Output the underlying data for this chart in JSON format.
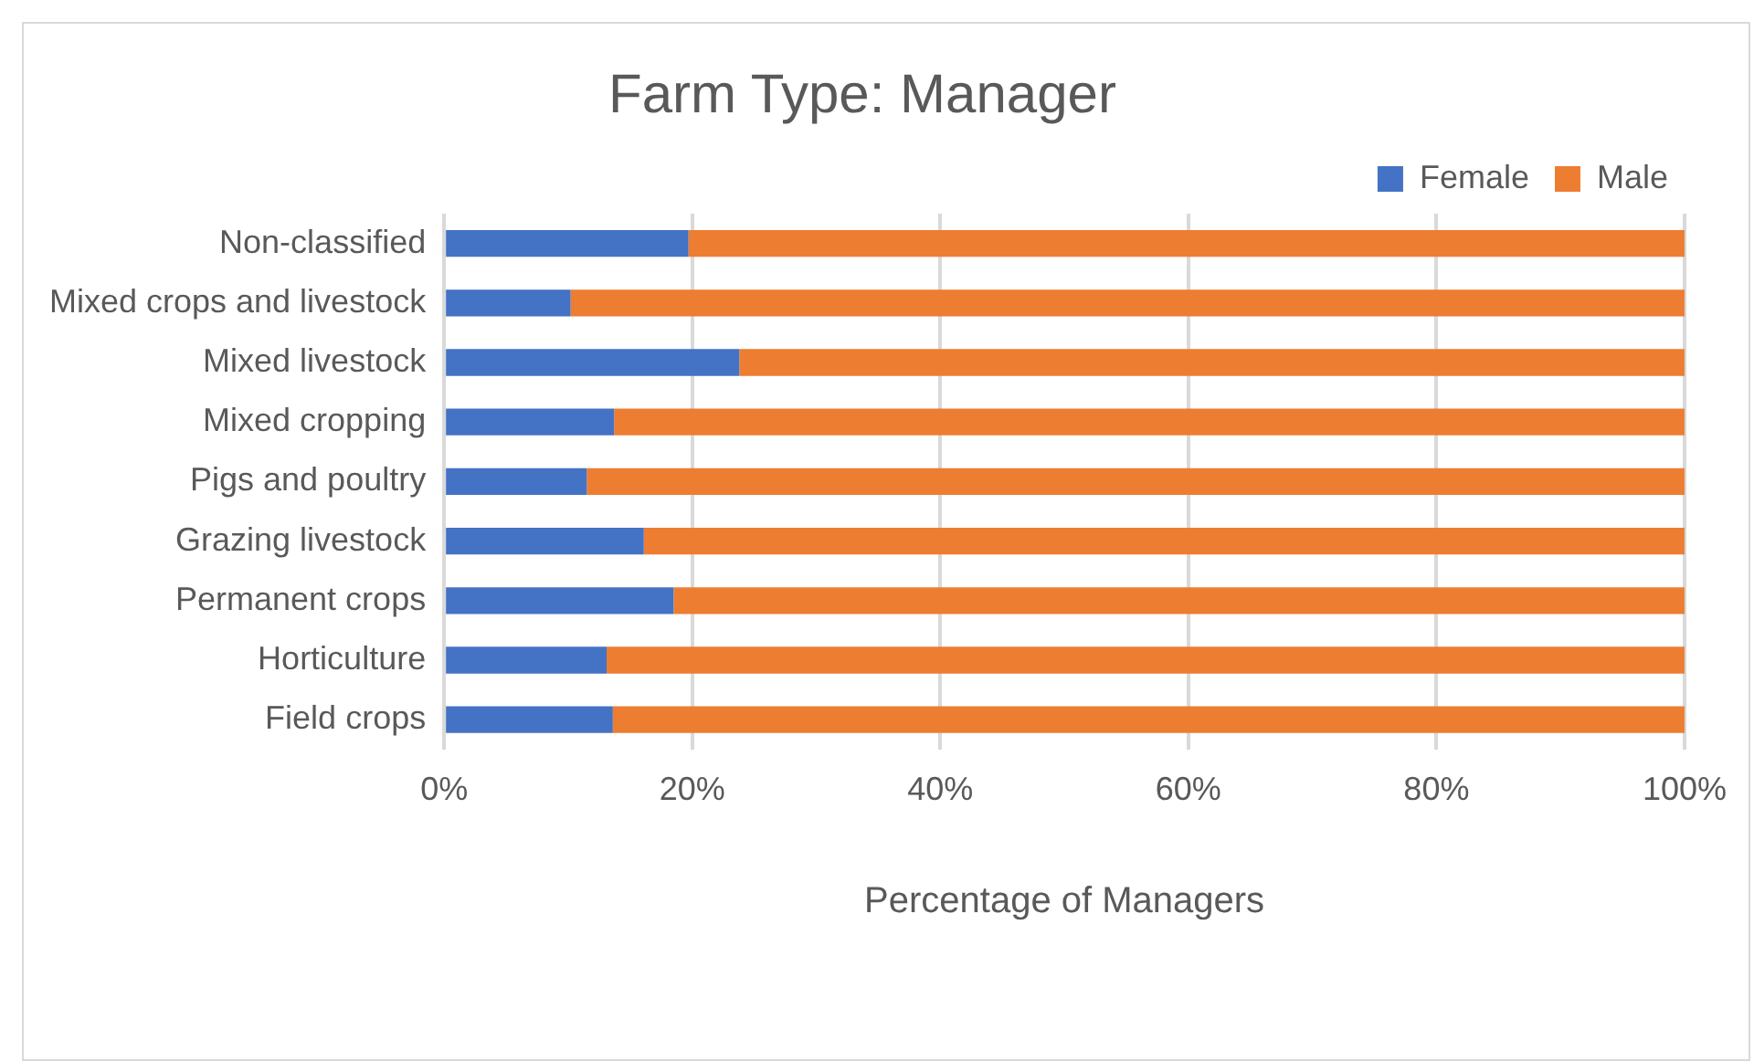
{
  "chart_data": {
    "type": "bar",
    "orientation": "horizontal",
    "stacked": true,
    "title": "Farm Type: Manager",
    "xlabel": "Percentage of Managers",
    "categories": [
      "Non-classified",
      "Mixed crops and livestock",
      "Mixed livestock",
      "Mixed cropping",
      "Pigs and poultry",
      "Grazing livestock",
      "Permanent crops",
      "Horticulture",
      "Field crops"
    ],
    "series": [
      {
        "name": "Female",
        "color": "#4472c4",
        "values": [
          19.7,
          10.2,
          23.8,
          13.7,
          11.5,
          16.1,
          18.5,
          13.1,
          13.6
        ]
      },
      {
        "name": "Male",
        "color": "#ed7d31",
        "values": [
          80.3,
          89.8,
          76.2,
          86.3,
          88.5,
          83.9,
          81.5,
          86.9,
          86.4
        ]
      }
    ],
    "xlim": [
      0,
      100
    ],
    "xticks": [
      {
        "value": 0,
        "label": "0%"
      },
      {
        "value": 20,
        "label": "20%"
      },
      {
        "value": 40,
        "label": "40%"
      },
      {
        "value": 60,
        "label": "60%"
      },
      {
        "value": 80,
        "label": "80%"
      },
      {
        "value": 100,
        "label": "100%"
      }
    ],
    "grid": "x",
    "legend": "top right"
  }
}
